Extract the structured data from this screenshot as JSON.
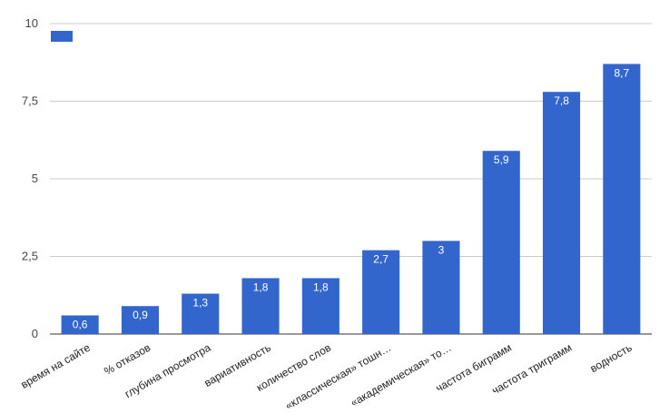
{
  "chart_data": {
    "type": "bar",
    "categories": [
      "время на сайте",
      "% отказов",
      "глубина просмотра",
      "вариативность",
      "количество слов",
      "«классическая» тошн…",
      "«академическая» то…",
      "частота биграмм",
      "частота триграмм",
      "водность"
    ],
    "series": [
      {
        "values": [
          0.6,
          0.9,
          1.3,
          1.8,
          1.8,
          2.7,
          3,
          5.9,
          7.8,
          8.7
        ],
        "data_labels": [
          "0,6",
          "0,9",
          "1,3",
          "1,8",
          "1,8",
          "2,7",
          "3",
          "5,9",
          "7,8",
          "8,7"
        ]
      }
    ],
    "title": "",
    "xlabel": "",
    "ylabel": "",
    "ylim": [
      0,
      10
    ],
    "yticks": [
      0,
      2.5,
      5,
      7.5,
      10
    ],
    "ytick_labels": [
      "0",
      "2,5",
      "5",
      "7,5",
      "10"
    ],
    "grid": true,
    "legend": "top-left",
    "colors": {
      "bar": "#3366cc",
      "grid": "#cccccc",
      "baseline": "#333333"
    }
  }
}
